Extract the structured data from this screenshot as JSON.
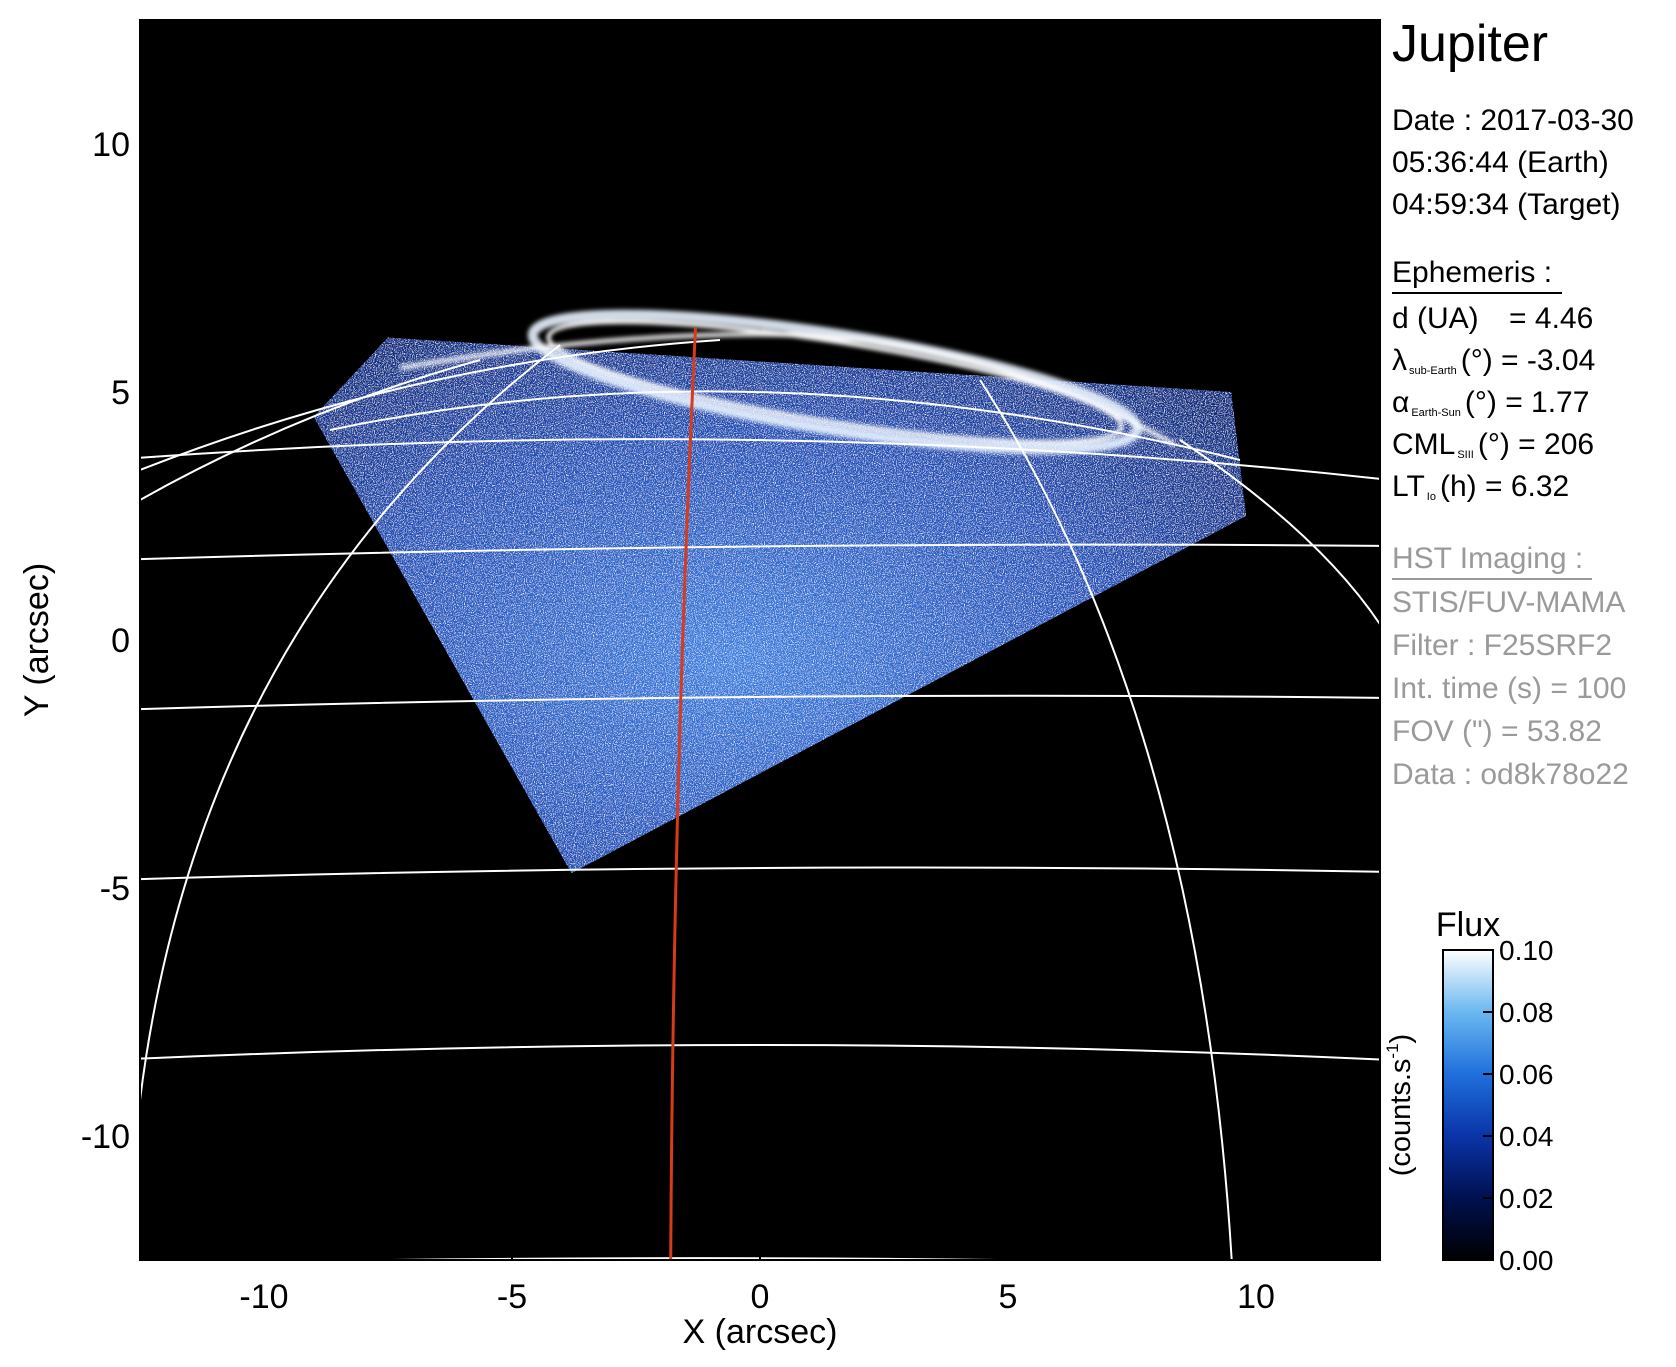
{
  "chart_data": {
    "type": "heatmap",
    "title": "Jupiter",
    "xlabel": "X (arcsec)",
    "ylabel": "Y (arcsec)",
    "xlim": [
      -12.5,
      12.5
    ],
    "ylim": [
      -12.5,
      12.5
    ],
    "xticks": [
      -10,
      -5,
      0,
      5,
      10
    ],
    "yticks": [
      -10,
      -5,
      0,
      5,
      10
    ],
    "colorbar": {
      "title": "Flux",
      "label": "(counts.s",
      "label_exp": "-1",
      "label_end": ")",
      "range": [
        0.0,
        0.1
      ],
      "ticks": [
        "0.10",
        "0.08",
        "0.06",
        "0.04",
        "0.02",
        "0.00"
      ],
      "colors": [
        "#000000",
        "#001050",
        "#0a34a8",
        "#1f6fdc",
        "#6ab8f0",
        "#ffffff"
      ]
    },
    "observation_footprint": [
      [
        -3.8,
        -4.7
      ],
      [
        -9.0,
        4.5
      ],
      [
        -7.5,
        6.1
      ],
      [
        9.5,
        5.0
      ],
      [
        9.8,
        2.5
      ]
    ],
    "reference_meridian_x": [
      -1.3,
      -1.8
    ],
    "gridline_color": "#ffffff",
    "meridian_color": "#d83a1a"
  },
  "info": {
    "date": "Date : 2017-03-30",
    "time_earth": "05:36:44 (Earth)",
    "time_target": "04:59:34 (Target)",
    "ephemeris_header": "Ephemeris :",
    "d_label": "d (UA)",
    "d_value": "= 4.46",
    "lambda_symbol": "λ",
    "lambda_sub": "sub-Earth",
    "lambda_rest": "(°) = -3.04",
    "alpha_symbol": "α",
    "alpha_sub": "Earth-Sun",
    "alpha_rest": "(°) = 1.77",
    "cml_symbol": "CML",
    "cml_sub": "SIII",
    "cml_rest": "(°) = 206",
    "lt_symbol": "LT",
    "lt_sub": "Io",
    "lt_rest": "(h) = 6.32",
    "hst_header": "HST Imaging :",
    "instrument": "STIS/FUV-MAMA",
    "filter": "Filter : F25SRF2",
    "int_time": "Int. time (s) = 100",
    "fov": "FOV (\") = 53.82",
    "data_id": "Data : od8k78o22"
  }
}
